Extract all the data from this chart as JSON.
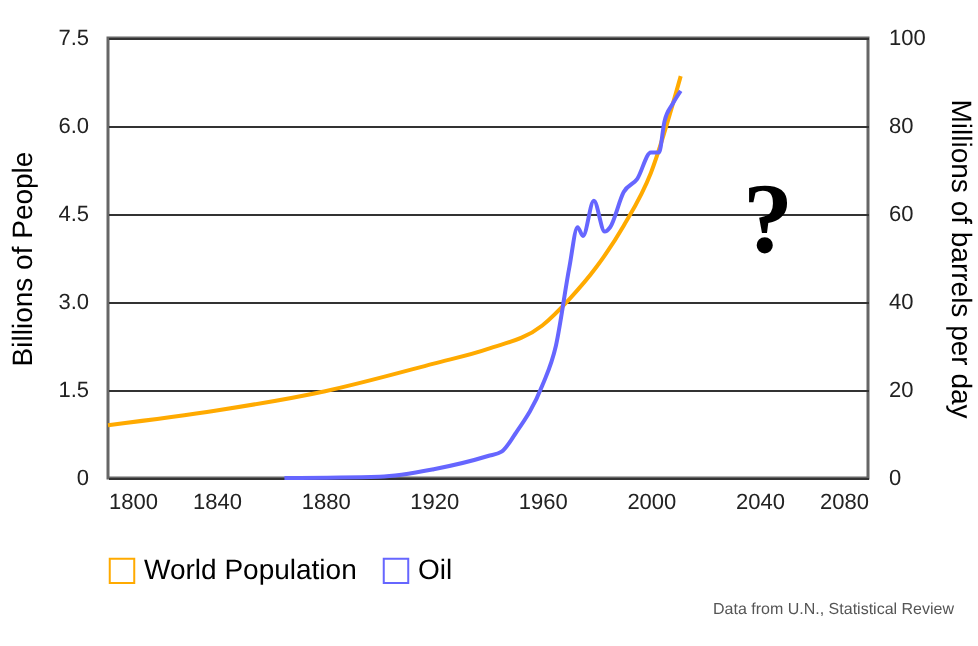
{
  "chart_data": {
    "type": "line",
    "xlim": [
      1800,
      2080
    ],
    "xticks": [
      1800,
      1840,
      1880,
      1920,
      1960,
      2000,
      2040,
      2080
    ],
    "ylabel": "Billions of People",
    "y2label": "Millions of barrels per day",
    "ylim": [
      0,
      7.5
    ],
    "yticks": [
      {
        "value": 0,
        "label": "0"
      },
      {
        "value": 1.5,
        "label": "1.5"
      },
      {
        "value": 3,
        "label": "3.0"
      },
      {
        "value": 4.5,
        "label": "4.5"
      },
      {
        "value": 6,
        "label": "6.0"
      },
      {
        "value": 7.5,
        "label": "7.5"
      }
    ],
    "y2lim": [
      0,
      100
    ],
    "y2ticks": [
      0,
      20,
      40,
      60,
      80,
      100
    ],
    "grid": "y",
    "legend": "bottom",
    "marker": "none",
    "line_style": "solid",
    "annotations": [
      "?",
      "Data from U.N., Statistical Review"
    ],
    "series": [
      {
        "name": "World Population",
        "color": "#ffaa00",
        "x": [
          1800,
          1840,
          1880,
          1920,
          1940,
          1960,
          1970,
          1980,
          1990,
          2000,
          2011
        ],
        "values": [
          0.9,
          1.15,
          1.48,
          1.95,
          2.2,
          2.6,
          3.05,
          3.6,
          4.3,
          5.2,
          6.85
        ]
      },
      {
        "name": "Oil",
        "color": "#6666ff",
        "axis": "y2",
        "x": [
          1865,
          1900,
          1920,
          1940,
          1945,
          1950,
          1960,
          1965,
          1970,
          1973,
          1975,
          1979,
          1983,
          1985,
          1990,
          1995,
          2000,
          2003,
          2005,
          2008,
          2011
        ],
        "values": [
          0,
          0.3,
          2,
          5,
          6,
          10,
          21,
          30,
          48,
          57,
          55,
          63,
          56,
          57,
          65,
          68,
          74,
          74,
          81,
          85,
          88
        ]
      }
    ]
  }
}
